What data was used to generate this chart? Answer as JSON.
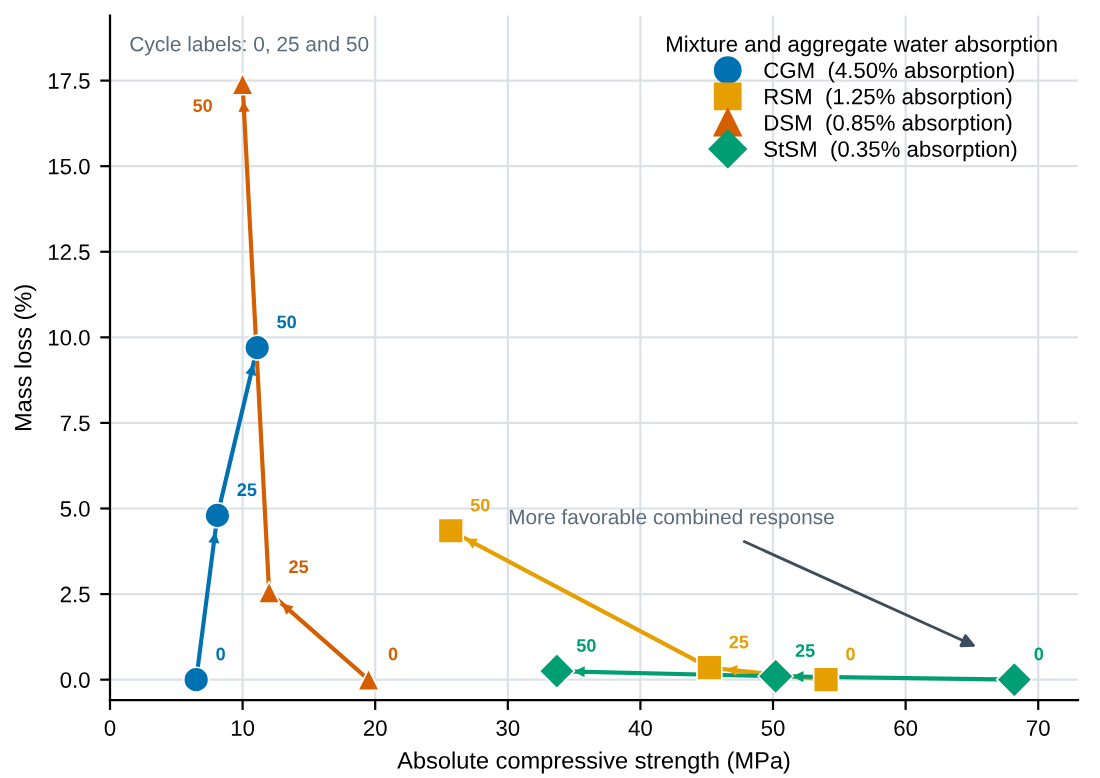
{
  "chart_data": {
    "type": "line",
    "xlabel": "Absolute compressive strength (MPa)",
    "ylabel": "Mass loss (%)",
    "legend_title": "Mixture and aggregate water absorption",
    "legend": "top right",
    "grid": true,
    "xlim": [
      0,
      73
    ],
    "ylim": [
      -0.6,
      19.4
    ],
    "xticks": [
      0,
      10,
      20,
      30,
      40,
      50,
      60,
      70
    ],
    "yticks": [
      {
        "value": 0,
        "label": "0.0"
      },
      {
        "value": 2.5,
        "label": "2.5"
      },
      {
        "value": 5,
        "label": "5.0"
      },
      {
        "value": 7.5,
        "label": "7.5"
      },
      {
        "value": 10,
        "label": "10.0"
      },
      {
        "value": 12.5,
        "label": "12.5"
      },
      {
        "value": 15,
        "label": "15.0"
      },
      {
        "value": 17.5,
        "label": "17.5"
      }
    ],
    "series": [
      {
        "name": "CGM  (4.50% absorption)",
        "color": "#0072b2",
        "marker": "circle",
        "x": [
          6.5,
          8.1,
          11.1
        ],
        "values": [
          0,
          4.8,
          9.7
        ]
      },
      {
        "name": "RSM  (1.25% absorption)",
        "color": "#e69f00",
        "marker": "square",
        "x": [
          54,
          45.2,
          25.7
        ],
        "values": [
          0,
          0.35,
          4.35
        ]
      },
      {
        "name": "DSM  (0.85% absorption)",
        "color": "#d55e00",
        "marker": "triangle",
        "x": [
          19.5,
          12,
          10
        ],
        "values": [
          0,
          2.55,
          17.4
        ]
      },
      {
        "name": "StSM  (0.35% absorption)",
        "color": "#009e73",
        "marker": "diamond",
        "x": [
          68.2,
          50.2,
          33.7
        ],
        "values": [
          0,
          0.1,
          0.25
        ]
      }
    ],
    "annotations": [
      "Cycle labels: 0, 25 and 50",
      "More favorable combined response",
      {
        "text": "0",
        "x": 6.5,
        "y": 0
      },
      {
        "text": "25",
        "x": 8.1,
        "y": 4.8
      },
      {
        "text": "50",
        "x": 11.1,
        "y": 9.7
      },
      {
        "text": "0",
        "x": 54,
        "y": 0
      },
      {
        "text": "25",
        "x": 45.2,
        "y": 0.35
      },
      {
        "text": "50",
        "x": 25.7,
        "y": 4.35
      },
      {
        "text": "0",
        "x": 19.5,
        "y": 0
      },
      {
        "text": "25",
        "x": 12,
        "y": 2.55
      },
      {
        "text": "50",
        "x": 10,
        "y": 17.4
      },
      {
        "text": "0",
        "x": 68.2,
        "y": 0
      },
      {
        "text": "25",
        "x": 50.2,
        "y": 0.1
      },
      {
        "text": "50",
        "x": 33.7,
        "y": 0.25
      }
    ]
  }
}
